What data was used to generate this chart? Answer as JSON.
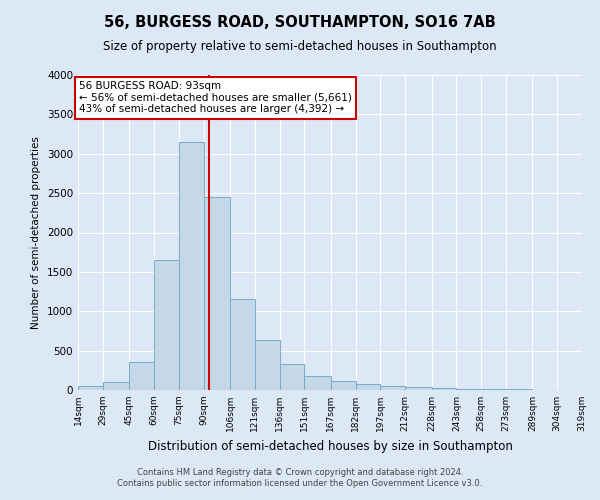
{
  "title": "56, BURGESS ROAD, SOUTHAMPTON, SO16 7AB",
  "subtitle": "Size of property relative to semi-detached houses in Southampton",
  "xlabel": "Distribution of semi-detached houses by size in Southampton",
  "ylabel": "Number of semi-detached properties",
  "footer_line1": "Contains HM Land Registry data © Crown copyright and database right 2024.",
  "footer_line2": "Contains public sector information licensed under the Open Government Licence v3.0.",
  "annotation_title": "56 BURGESS ROAD: 93sqm",
  "annotation_line2": "← 56% of semi-detached houses are smaller (5,661)",
  "annotation_line3": "43% of semi-detached houses are larger (4,392) →",
  "property_size": 93,
  "bin_edges": [
    14,
    29,
    45,
    60,
    75,
    90,
    106,
    121,
    136,
    151,
    167,
    182,
    197,
    212,
    228,
    243,
    258,
    273,
    289,
    304,
    319
  ],
  "bar_heights": [
    50,
    100,
    350,
    1650,
    3150,
    2450,
    1150,
    630,
    330,
    175,
    115,
    80,
    55,
    40,
    25,
    15,
    10,
    8,
    5,
    5
  ],
  "bar_color": "#c5d8e8",
  "bar_edgecolor": "#7aaac8",
  "vline_color": "#cc0000",
  "vline_x": 93,
  "ylim": [
    0,
    4000
  ],
  "yticks": [
    0,
    500,
    1000,
    1500,
    2000,
    2500,
    3000,
    3500,
    4000
  ],
  "bg_color": "#dce8f5",
  "grid_color": "#ffffff",
  "annotation_box_edgecolor": "#cc0000",
  "annotation_box_facecolor": "#ffffff"
}
